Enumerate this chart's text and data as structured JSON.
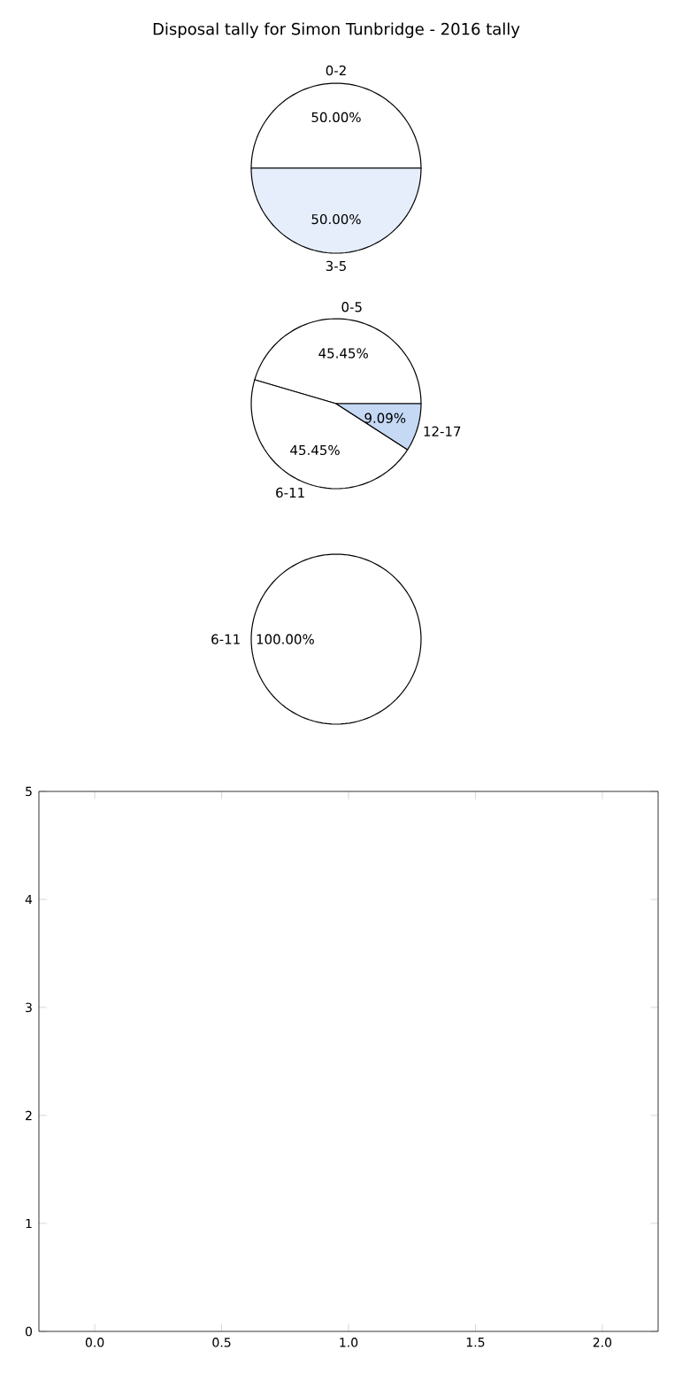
{
  "chart_data": [
    {
      "type": "pie",
      "title": "Disposal tally for Simon Tunbridge - 2016 tally",
      "categories": [
        "0-2",
        "3-5"
      ],
      "values": [
        50,
        50
      ],
      "value_labels": [
        "50.00%",
        "50.00%"
      ],
      "colors": [
        "#ffffff",
        "#e6eefc"
      ]
    },
    {
      "type": "pie",
      "categories": [
        "0-5",
        "6-11",
        "12-17"
      ],
      "values": [
        45.45,
        45.45,
        9.09
      ],
      "value_labels": [
        "45.45%",
        "45.45%",
        "9.09%"
      ],
      "colors": [
        "#ffffff",
        "#ffffff",
        "#c5d9f5"
      ]
    },
    {
      "type": "pie",
      "categories": [
        "6-11"
      ],
      "values": [
        100
      ],
      "value_labels": [
        "100.00%"
      ],
      "colors": [
        "#ffffff"
      ]
    },
    {
      "type": "scatter",
      "xlim": [
        -0.22,
        2.22
      ],
      "ylim": [
        0,
        5
      ],
      "xticks": [
        {
          "value": 0,
          "label": "0.0"
        },
        {
          "value": 0.5,
          "label": "0.5"
        },
        {
          "value": 1,
          "label": "1.0"
        },
        {
          "value": 1.5,
          "label": "1.5"
        },
        {
          "value": 2,
          "label": "2.0"
        }
      ],
      "yticks": [
        0,
        1,
        2,
        3,
        4,
        5
      ]
    }
  ]
}
